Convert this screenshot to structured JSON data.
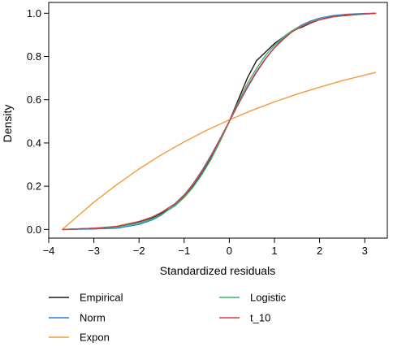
{
  "chart_data": {
    "type": "line",
    "title": "",
    "xlabel": "Standardized residuals",
    "ylabel": "Density",
    "xlim": [
      -4,
      3.5
    ],
    "ylim": [
      -0.04,
      1.05
    ],
    "xticks": [
      -4,
      -3,
      -2,
      -1,
      0,
      1,
      2,
      3
    ],
    "xtick_labels": [
      "−4",
      "−3",
      "−2",
      "−1",
      "0",
      "1",
      "2",
      "3"
    ],
    "yticks": [
      0.0,
      0.2,
      0.4,
      0.6,
      0.8,
      1.0
    ],
    "ytick_labels": [
      "0.0",
      "0.2",
      "0.4",
      "0.6",
      "0.8",
      "1.0"
    ],
    "grid": false,
    "legend_position": "bottom",
    "series": [
      {
        "name": "Empirical",
        "color": "#1a1a1a",
        "x": [
          -3.7,
          -3.0,
          -2.5,
          -2.0,
          -1.7,
          -1.5,
          -1.2,
          -1.0,
          -0.8,
          -0.6,
          -0.4,
          -0.2,
          0.0,
          0.2,
          0.4,
          0.6,
          0.8,
          1.0,
          1.2,
          1.4,
          1.6,
          1.8,
          2.0,
          2.3,
          2.6,
          3.0,
          3.25
        ],
        "y": [
          0.0,
          0.005,
          0.012,
          0.035,
          0.055,
          0.075,
          0.11,
          0.15,
          0.2,
          0.26,
          0.33,
          0.41,
          0.5,
          0.6,
          0.7,
          0.78,
          0.82,
          0.86,
          0.89,
          0.92,
          0.935,
          0.955,
          0.97,
          0.985,
          0.99,
          0.997,
          1.0
        ]
      },
      {
        "name": "Norm",
        "color": "#2f7fd1",
        "x": [
          -3.7,
          -3.0,
          -2.5,
          -2.0,
          -1.7,
          -1.5,
          -1.2,
          -1.0,
          -0.8,
          -0.6,
          -0.4,
          -0.2,
          0.0,
          0.2,
          0.4,
          0.6,
          0.8,
          1.0,
          1.2,
          1.4,
          1.6,
          1.8,
          2.0,
          2.3,
          2.6,
          3.0,
          3.25
        ],
        "y": [
          0.0,
          0.002,
          0.006,
          0.023,
          0.045,
          0.067,
          0.115,
          0.159,
          0.212,
          0.274,
          0.345,
          0.421,
          0.5,
          0.579,
          0.655,
          0.726,
          0.788,
          0.841,
          0.885,
          0.919,
          0.945,
          0.964,
          0.977,
          0.989,
          0.995,
          0.999,
          1.0
        ]
      },
      {
        "name": "Expon",
        "color": "#f39a3c",
        "x": [
          -3.7,
          -3.0,
          -2.5,
          -2.0,
          -1.5,
          -1.0,
          -0.5,
          0.0,
          0.5,
          1.0,
          1.5,
          2.0,
          2.5,
          3.0,
          3.25
        ],
        "y": [
          0.0,
          0.126,
          0.206,
          0.28,
          0.346,
          0.405,
          0.459,
          0.507,
          0.551,
          0.59,
          0.626,
          0.658,
          0.688,
          0.714,
          0.727
        ]
      },
      {
        "name": "Logistic",
        "color": "#3cb371",
        "x": [
          -3.7,
          -3.0,
          -2.5,
          -2.0,
          -1.7,
          -1.5,
          -1.2,
          -1.0,
          -0.8,
          -0.6,
          -0.4,
          -0.2,
          0.0,
          0.2,
          0.4,
          0.6,
          0.8,
          1.0,
          1.2,
          1.4,
          1.6,
          1.8,
          2.0,
          2.3,
          2.6,
          3.0,
          3.25
        ],
        "y": [
          0.0,
          0.005,
          0.011,
          0.03,
          0.05,
          0.07,
          0.11,
          0.148,
          0.196,
          0.256,
          0.326,
          0.41,
          0.5,
          0.59,
          0.674,
          0.744,
          0.804,
          0.852,
          0.89,
          0.92,
          0.942,
          0.958,
          0.97,
          0.983,
          0.991,
          0.996,
          1.0
        ]
      },
      {
        "name": "t_10",
        "color": "#d23c3c",
        "x": [
          -3.7,
          -3.0,
          -2.5,
          -2.0,
          -1.7,
          -1.5,
          -1.2,
          -1.0,
          -0.8,
          -0.6,
          -0.4,
          -0.2,
          0.0,
          0.2,
          0.4,
          0.6,
          0.8,
          1.0,
          1.2,
          1.4,
          1.6,
          1.8,
          2.0,
          2.3,
          2.6,
          3.0,
          3.25
        ],
        "y": [
          0.0,
          0.006,
          0.014,
          0.037,
          0.058,
          0.079,
          0.12,
          0.16,
          0.21,
          0.27,
          0.34,
          0.42,
          0.5,
          0.58,
          0.66,
          0.73,
          0.79,
          0.84,
          0.88,
          0.915,
          0.938,
          0.957,
          0.97,
          0.984,
          0.992,
          0.997,
          1.0
        ]
      }
    ]
  }
}
